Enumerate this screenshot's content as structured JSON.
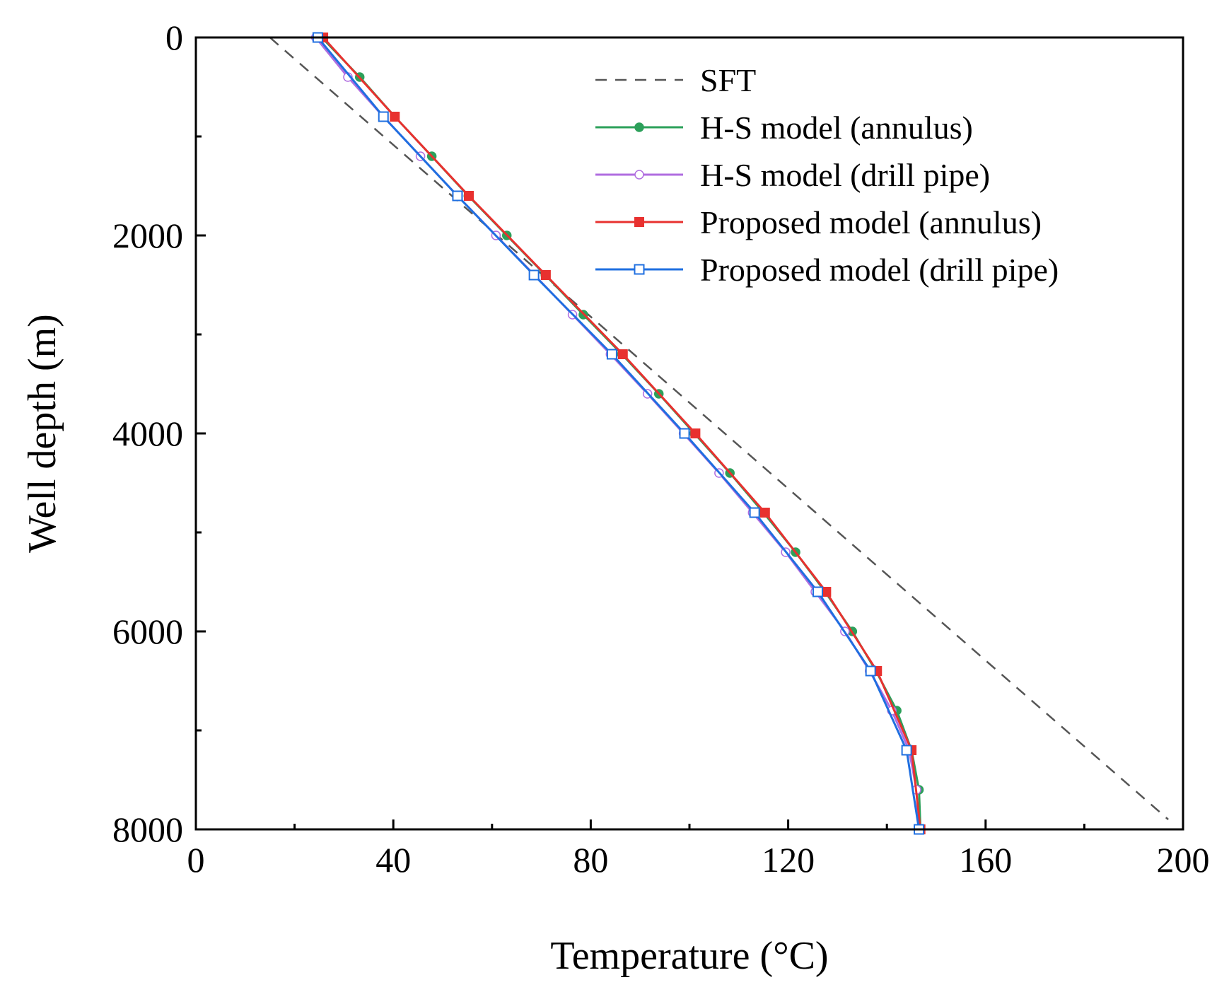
{
  "chart_data": {
    "type": "line",
    "xlabel": "Temperature (°C)",
    "ylabel": "Well depth (m)",
    "xlim": [
      0,
      200
    ],
    "ylim": [
      0,
      8000
    ],
    "y_inverted": true,
    "x_ticks": [
      0,
      40,
      80,
      120,
      160,
      200
    ],
    "y_ticks": [
      0,
      2000,
      4000,
      6000,
      8000
    ],
    "grid": false,
    "legend_position": "top-right",
    "series": [
      {
        "name": "SFT",
        "color": "#555555",
        "line_style": "dashed",
        "marker": "none",
        "points": [
          [
            15,
            0
          ],
          [
            197,
            7900
          ]
        ]
      },
      {
        "name": "H-S model (annulus)",
        "color": "#2ca05a",
        "line_style": "solid",
        "marker": "filled-circle",
        "points": [
          [
            25.5,
            0
          ],
          [
            33.2,
            400
          ],
          [
            40.3,
            800
          ],
          [
            47.8,
            1200
          ],
          [
            55.2,
            1600
          ],
          [
            63,
            2000
          ],
          [
            70.8,
            2400
          ],
          [
            78.5,
            2800
          ],
          [
            86.3,
            3200
          ],
          [
            93.8,
            3600
          ],
          [
            101,
            4000
          ],
          [
            108.2,
            4400
          ],
          [
            115,
            4800
          ],
          [
            121.5,
            5200
          ],
          [
            127.5,
            5600
          ],
          [
            133,
            6000
          ],
          [
            137.8,
            6400
          ],
          [
            142,
            6800
          ],
          [
            145,
            7200
          ],
          [
            146.5,
            7600
          ],
          [
            146.8,
            8000
          ]
        ]
      },
      {
        "name": "H-S model (drill pipe)",
        "color": "#b06de0",
        "line_style": "solid",
        "marker": "open-circle",
        "points": [
          [
            24.3,
            0
          ],
          [
            30.8,
            400
          ],
          [
            38,
            800
          ],
          [
            45.5,
            1200
          ],
          [
            53,
            1600
          ],
          [
            60.8,
            2000
          ],
          [
            68.6,
            2400
          ],
          [
            76.3,
            2800
          ],
          [
            84,
            3200
          ],
          [
            91.5,
            3600
          ],
          [
            98.8,
            4000
          ],
          [
            106,
            4400
          ],
          [
            112.8,
            4800
          ],
          [
            119.5,
            5200
          ],
          [
            125.5,
            5600
          ],
          [
            131.5,
            6000
          ],
          [
            136.5,
            6400
          ],
          [
            141,
            6800
          ],
          [
            144.5,
            7200
          ],
          [
            146,
            7600
          ],
          [
            146.5,
            8000
          ]
        ]
      },
      {
        "name": "Proposed model (annulus)",
        "color": "#e8312f",
        "line_style": "solid",
        "marker": "filled-square",
        "points": [
          [
            25.8,
            0
          ],
          [
            40.3,
            800
          ],
          [
            55.3,
            1600
          ],
          [
            70.9,
            2400
          ],
          [
            86.5,
            3200
          ],
          [
            101.2,
            4000
          ],
          [
            115.3,
            4800
          ],
          [
            127.7,
            5600
          ],
          [
            138,
            6400
          ],
          [
            145,
            7200
          ],
          [
            146.8,
            8000
          ]
        ]
      },
      {
        "name": "Proposed model (drill pipe)",
        "color": "#1f6fe0",
        "line_style": "solid",
        "marker": "open-square",
        "points": [
          [
            24.7,
            0
          ],
          [
            38,
            800
          ],
          [
            53,
            1600
          ],
          [
            68.5,
            2400
          ],
          [
            84.3,
            3200
          ],
          [
            99,
            4000
          ],
          [
            113.2,
            4800
          ],
          [
            126,
            5600
          ],
          [
            136.7,
            6400
          ],
          [
            144,
            7200
          ],
          [
            146.5,
            8000
          ]
        ]
      }
    ]
  }
}
